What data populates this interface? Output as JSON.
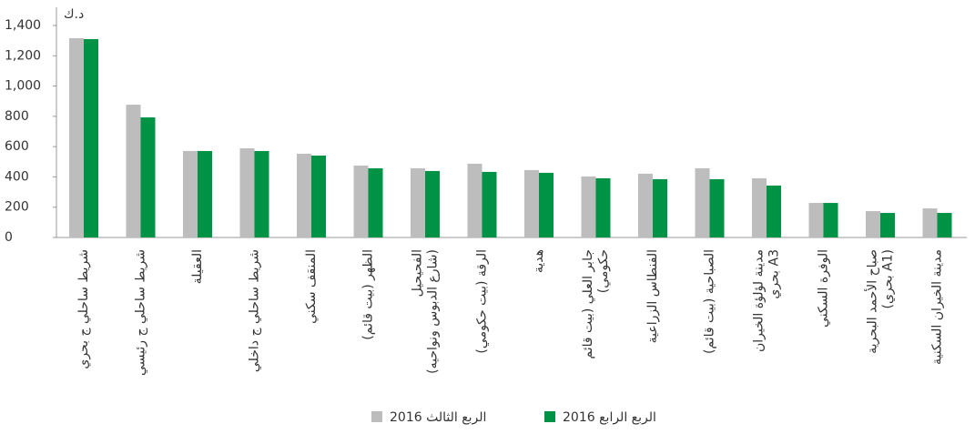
{
  "chart_data": {
    "type": "bar",
    "y_label": "د.ك",
    "categories": [
      "شريط ساحلي ج بحري",
      "شريط ساحلي ج رئيسي",
      "العقيلة",
      "شريط ساحلي ج داخلي",
      "المنقف سكني",
      "الظهر (بيت قائم)",
      "الفحيحيل\n(شارع الدبوس ونواحيه)",
      "الرقة (بيت حكومي)",
      "هدية",
      "جابر العلي (بيت قائم\nحكومي)",
      "الفنطاس الزراعية",
      "الصباحية (بيت قائم)",
      "مدينة لؤلؤة الخيران\nA3 بحري",
      "الوفرة السكني",
      "صباح الأحمد البحرية\n(A1 بحري)",
      "مدينة الخيران السكنية"
    ],
    "series": [
      {
        "name": "الربع الثالث 2016",
        "color": "#bdbdbd",
        "values": [
          1316,
          877,
          571,
          589,
          553,
          475,
          457,
          487,
          445,
          403,
          421,
          457,
          391,
          228,
          174,
          192
        ]
      },
      {
        "name": "الربع الرابع 2016",
        "color": "#009245",
        "values": [
          1310,
          793,
          571,
          571,
          541,
          457,
          439,
          433,
          427,
          391,
          385,
          385,
          343,
          228,
          162,
          162
        ]
      }
    ],
    "ylim": [
      0,
      1400
    ],
    "yticks": [
      0,
      200,
      400,
      600,
      800,
      {
        "value": 1000,
        "label": "1,000"
      },
      {
        "value": 1200,
        "label": "1,200"
      },
      {
        "value": 1400,
        "label": "1,400"
      }
    ],
    "legend": "bottom"
  }
}
